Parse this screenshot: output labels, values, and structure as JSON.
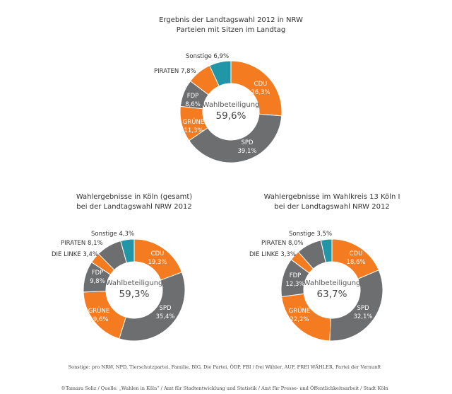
{
  "colors": {
    "cdu": "#f47b20",
    "spd": "#6d6e70",
    "gruene": "#f47b20",
    "fdp": "#6d6e70",
    "linke": "#f47b20",
    "piraten": "#6d6e70",
    "sonstige": "#2196a6"
  },
  "chart_data": [
    {
      "type": "pie",
      "title": "Ergebnis der Landtagswahl 2012 in NRW",
      "subtitle": "Parteien mit Sitzen im Landtag",
      "center_label": "Wahlbeteiligung",
      "center_value": "59,6%",
      "slices": [
        {
          "party": "CDU",
          "pct_text": "26,3%",
          "value": 26.3,
          "color_key": "cdu"
        },
        {
          "party": "SPD",
          "pct_text": "39,1%",
          "value": 39.1,
          "color_key": "spd"
        },
        {
          "party": "GRÜNE",
          "pct_text": "11,3%",
          "value": 11.3,
          "color_key": "gruene"
        },
        {
          "party": "FDP",
          "pct_text": "8,6%",
          "value": 8.6,
          "color_key": "fdp"
        },
        {
          "party": "PIRATEN",
          "pct_text": "7,8%",
          "value": 7.8,
          "color_key": "linke"
        },
        {
          "party": "Sonstige",
          "pct_text": "6,9%",
          "value": 6.9,
          "color_key": "sonstige"
        }
      ]
    },
    {
      "type": "pie",
      "title": "Wahlergebnisse in Köln (gesamt)",
      "subtitle": "bei der Landtagswahl NRW 2012",
      "center_label": "Wahlbeteiligung",
      "center_value": "59,3%",
      "slices": [
        {
          "party": "CDU",
          "pct_text": "19,3%",
          "value": 19.3,
          "color_key": "cdu"
        },
        {
          "party": "SPD",
          "pct_text": "35,4%",
          "value": 35.4,
          "color_key": "spd"
        },
        {
          "party": "GRÜNE",
          "pct_text": "19,6%",
          "value": 19.6,
          "color_key": "gruene"
        },
        {
          "party": "FDP",
          "pct_text": "9,8%",
          "value": 9.8,
          "color_key": "fdp"
        },
        {
          "party": "DIE LINKE",
          "pct_text": "3,4%",
          "value": 3.4,
          "color_key": "linke"
        },
        {
          "party": "PIRATEN",
          "pct_text": "8,1%",
          "value": 8.1,
          "color_key": "piraten"
        },
        {
          "party": "Sonstige",
          "pct_text": "4,3%",
          "value": 4.3,
          "color_key": "sonstige"
        }
      ]
    },
    {
      "type": "pie",
      "title": "Wahlergebnisse im Wahlkreis 13 Köln I",
      "subtitle": "bei der Landtagswahl NRW 2012",
      "center_label": "Wahlbeteiligung",
      "center_value": "63,7%",
      "slices": [
        {
          "party": "CDU",
          "pct_text": "18,6%",
          "value": 18.6,
          "color_key": "cdu"
        },
        {
          "party": "SPD",
          "pct_text": "32,1%",
          "value": 32.1,
          "color_key": "spd"
        },
        {
          "party": "GRÜNE",
          "pct_text": "22,2%",
          "value": 22.2,
          "color_key": "gruene"
        },
        {
          "party": "FDP",
          "pct_text": "12,3%",
          "value": 12.3,
          "color_key": "fdp"
        },
        {
          "party": "DIE LINKE",
          "pct_text": "3,3%",
          "value": 3.3,
          "color_key": "linke"
        },
        {
          "party": "PIRATEN",
          "pct_text": "8,0%",
          "value": 8.0,
          "color_key": "piraten"
        },
        {
          "party": "Sonstige",
          "pct_text": "3,5%",
          "value": 3.5,
          "color_key": "sonstige"
        }
      ]
    }
  ],
  "footnote": "Sonstige: pro NRW, NPD, Tierschutzpartei, Familie, BIG, Die Partei, ÖDP, FBI / frei Wähler, AUF, FREI WÄHLER, Partei der Vernunft",
  "credit": "©Tamara Soliz / Quelle: „Wahlen in Köln“ / Amt für Stadtentwicklung und Statistik / Amt für Presse- und Öffentlichkeitsarbeit / Stadt Köln"
}
